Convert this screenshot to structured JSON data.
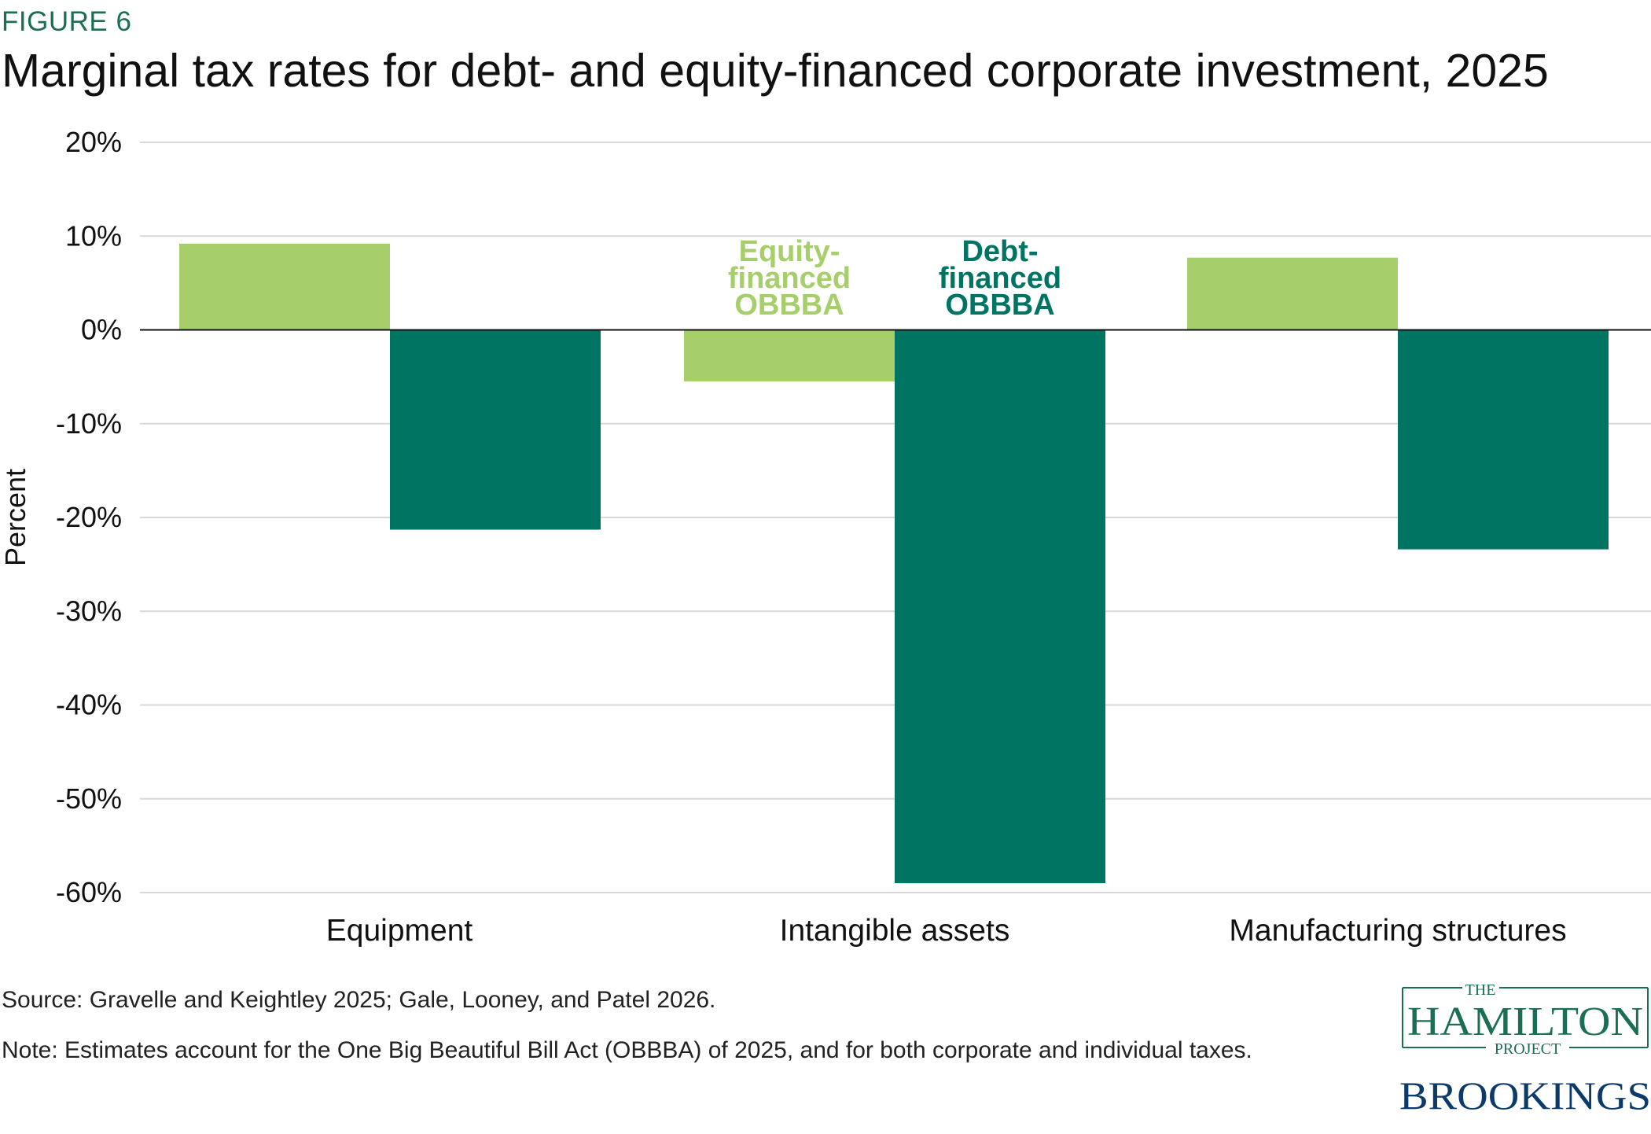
{
  "figure_label": "FIGURE 6",
  "title": "Marginal tax rates for debt- and equity-financed corporate investment, 2025",
  "source": "Source: Gravelle and Keightley 2025; Gale, Looney, and Patel 2026.",
  "note": "Note: Estimates account for the One Big Beautiful Bill Act (OBBBA) of 2025, and for both corporate and individual taxes.",
  "logo": {
    "the": "THE",
    "hamilton": "HAMILTON",
    "project": "PROJECT",
    "brookings": "BROOKINGS"
  },
  "colors": {
    "equity": "#a6cf6b",
    "debt": "#007462",
    "grid": "#d9d9d9",
    "zero_line": "#111111",
    "brand_green": "#1a6e55"
  },
  "chart_data": {
    "type": "bar",
    "categories": [
      "Equipment",
      "Intangible assets",
      "Manufacturing structures"
    ],
    "series": [
      {
        "name": "Equity-financed OBBBA",
        "values": [
          9.2,
          -5.5,
          7.7
        ]
      },
      {
        "name": "Debt-financed OBBBA",
        "values": [
          -21.3,
          -59.0,
          -23.4
        ]
      }
    ],
    "series_labels": [
      [
        "Equity-",
        "financed",
        "OBBBA"
      ],
      [
        "Debt-",
        "financed",
        "OBBBA"
      ]
    ],
    "ylabel": "Percent",
    "ylim": [
      -60,
      20
    ],
    "yticks": [
      20,
      10,
      0,
      -10,
      -20,
      -30,
      -40,
      -50,
      -60
    ],
    "ytick_labels": [
      "20%",
      "10%",
      "0%",
      "-10%",
      "-20%",
      "-30%",
      "-40%",
      "-50%",
      "-60%"
    ],
    "grid": true,
    "legend": "direct labels above middle group"
  }
}
